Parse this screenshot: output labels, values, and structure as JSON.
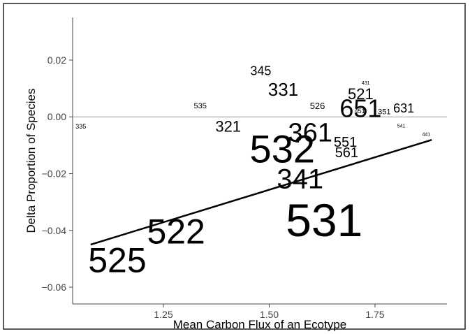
{
  "chart_data": {
    "type": "text-scatter",
    "x_label": "Mean Carbon Flux of an Ecotype",
    "y_label": "Delta Proportion of Species",
    "labels": [
      "335",
      "535",
      "345",
      "331",
      "526",
      "431",
      "521",
      "651",
      "451",
      "351",
      "631",
      "541",
      "441",
      "321",
      "361",
      "532",
      "551",
      "561",
      "341",
      "531",
      "522",
      "525"
    ],
    "x": [
      1.055,
      1.337,
      1.48,
      1.533,
      1.614,
      1.728,
      1.716,
      1.716,
      1.714,
      1.772,
      1.818,
      1.812,
      1.871,
      1.403,
      1.597,
      1.531,
      1.68,
      1.683,
      1.573,
      1.63,
      1.28,
      1.141
    ],
    "values": [
      -0.0034,
      0.0037,
      0.0162,
      0.0096,
      0.0039,
      0.0118,
      0.0081,
      0.003,
      0.002,
      0.0017,
      0.003,
      -0.0034,
      -0.0064,
      -0.0034,
      -0.0057,
      -0.0113,
      -0.0091,
      -0.0128,
      -0.022,
      -0.0364,
      -0.0404,
      -0.0505
    ],
    "sizes": [
      9,
      11,
      18,
      26,
      13,
      7,
      22,
      36,
      9,
      11,
      18,
      7,
      7,
      22,
      38,
      56,
      20,
      20,
      40,
      66,
      50,
      50
    ],
    "trend": {
      "x": [
        1.078,
        1.884
      ],
      "values": [
        -0.045,
        -0.0081
      ]
    },
    "xlim": [
      1.0355,
      1.92
    ],
    "ylim": [
      -0.0659,
      0.035
    ],
    "xticks": [
      {
        "value": 1.25,
        "label": "1.25"
      },
      {
        "value": 1.5,
        "label": "1.50"
      },
      {
        "value": 1.75,
        "label": "1.75"
      }
    ],
    "yticks": [
      {
        "value": -0.06,
        "label": "−0.06"
      },
      {
        "value": -0.04,
        "label": "−0.04"
      },
      {
        "value": -0.02,
        "label": "−0.02"
      },
      {
        "value": 0,
        "label": "0.00"
      },
      {
        "value": 0.02,
        "label": "0.02"
      }
    ],
    "zero_line": true
  }
}
